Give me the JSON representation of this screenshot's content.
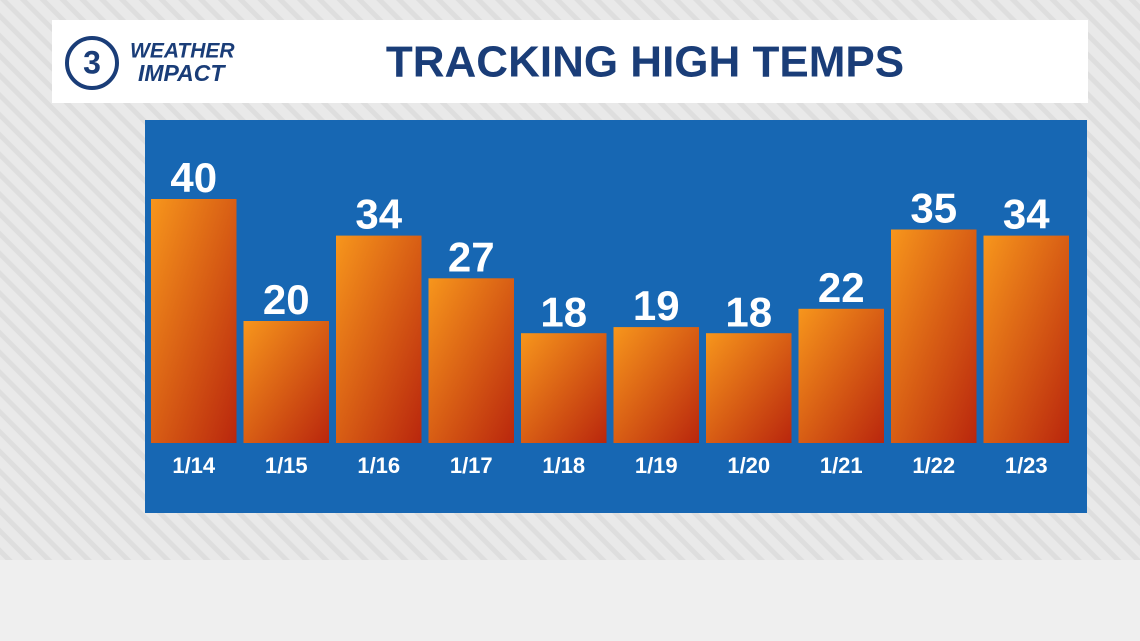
{
  "header": {
    "logo_number": "3",
    "logo_line1": "WEATHER",
    "logo_line2": "IMPACT"
  },
  "chart_data": {
    "type": "bar",
    "title": "TRACKING HIGH TEMPS",
    "categories": [
      "1/14",
      "1/15",
      "1/16",
      "1/17",
      "1/18",
      "1/19",
      "1/20",
      "1/21",
      "1/22",
      "1/23"
    ],
    "values": [
      40,
      20,
      34,
      27,
      18,
      19,
      18,
      22,
      35,
      34
    ],
    "colors": [
      "#f7961c",
      "#b9260d"
    ]
  }
}
